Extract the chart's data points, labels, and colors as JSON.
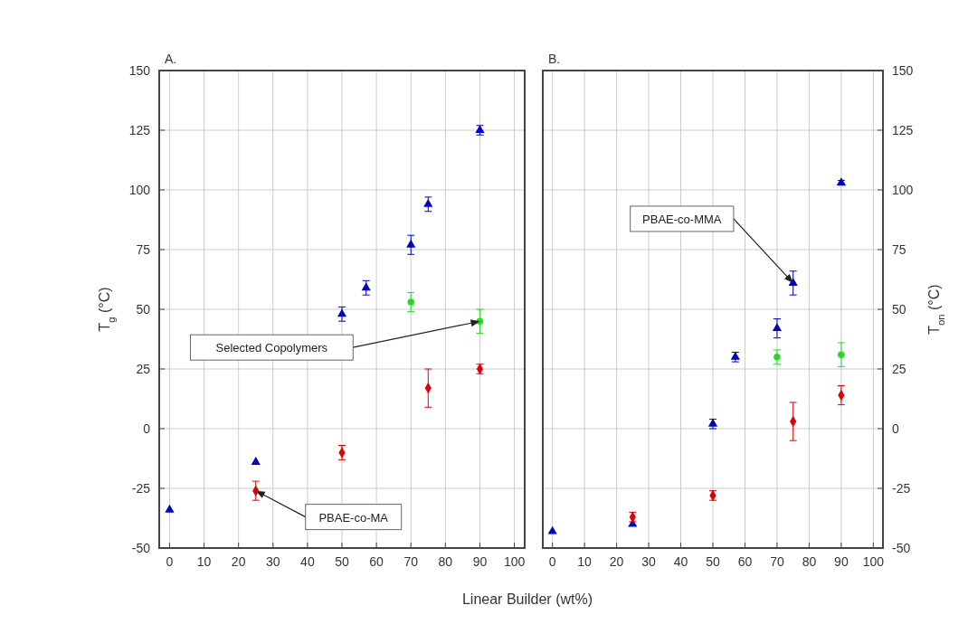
{
  "chart_data": [
    {
      "type": "scatter",
      "title": "A.",
      "ylabel": "T$_{g}$ (°C)",
      "xlabel": "Linear Builder (wt%)",
      "xlim": [
        -3,
        103
      ],
      "xticks": [
        0,
        10,
        20,
        30,
        40,
        50,
        60,
        70,
        80,
        90,
        100
      ],
      "ylim": [
        -50,
        150
      ],
      "yticks": [
        -50,
        -25,
        0,
        25,
        50,
        75,
        100,
        125,
        150
      ],
      "grid": true,
      "annotations": [
        "Selected Copolymers",
        "PBAE-co-MA"
      ],
      "series": [
        {
          "color": "#0000cc",
          "marker": "triangle",
          "x": [
            0,
            25,
            50,
            57,
            70,
            75,
            90
          ],
          "values": [
            -34,
            -14,
            48,
            59,
            77,
            94,
            125
          ],
          "errors": [
            null,
            null,
            3,
            3,
            4,
            3,
            2
          ]
        },
        {
          "color": "#e00000",
          "marker": "diamond",
          "x": [
            25,
            50,
            75,
            90
          ],
          "values": [
            -26,
            -10,
            17,
            25
          ],
          "errors": [
            4,
            3,
            8,
            2
          ]
        },
        {
          "color": "#22dd22",
          "marker": "circle",
          "x": [
            70,
            90
          ],
          "values": [
            53,
            45
          ],
          "errors": [
            4,
            5
          ]
        }
      ]
    },
    {
      "type": "scatter",
      "title": "B.",
      "y2label": "T$_{on}$ (°C)",
      "xlim": [
        -3,
        103
      ],
      "xticks": [
        0,
        10,
        20,
        30,
        40,
        50,
        60,
        70,
        80,
        90,
        100
      ],
      "y2lim": [
        -50,
        150
      ],
      "y2ticks": [
        -50,
        -25,
        0,
        25,
        50,
        75,
        100,
        125,
        150
      ],
      "grid": true,
      "annotations": [
        "PBAE-co-MMA"
      ],
      "series": [
        {
          "color": "#0000cc",
          "marker": "triangle",
          "axis": "y2",
          "x": [
            0,
            25,
            50,
            57,
            70,
            75,
            90
          ],
          "values": [
            -43,
            -40,
            2,
            30,
            42,
            61,
            103
          ],
          "errors": [
            null,
            null,
            2,
            2,
            4,
            5,
            1
          ]
        },
        {
          "color": "#e00000",
          "marker": "diamond",
          "axis": "y2",
          "x": [
            25,
            50,
            75,
            90
          ],
          "values": [
            -37,
            -28,
            3,
            14
          ],
          "errors": [
            2,
            2,
            8,
            4
          ]
        },
        {
          "color": "#22dd22",
          "marker": "circle",
          "axis": "y2",
          "x": [
            70,
            90
          ],
          "values": [
            30,
            31
          ],
          "errors": [
            3,
            5
          ]
        }
      ]
    }
  ]
}
